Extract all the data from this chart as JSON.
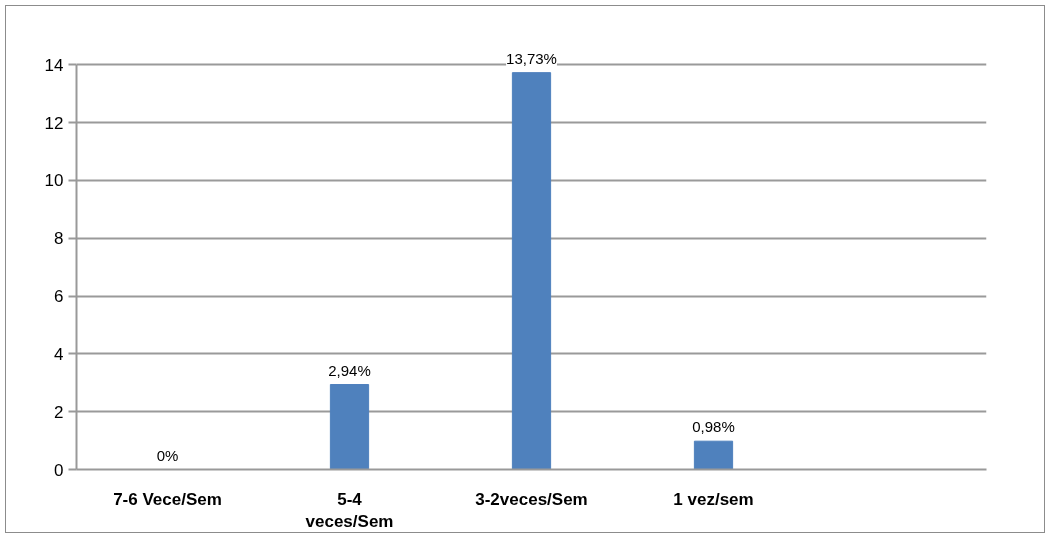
{
  "chart_data": {
    "type": "bar",
    "categories": [
      "7-6 Vece/Sem",
      "5-4 veces/Sem",
      "3-2veces/Sem",
      "1 vez/sem",
      null
    ],
    "values": [
      0,
      2.94,
      13.73,
      0.98,
      null
    ],
    "value_labels": [
      "0%",
      "2,94%",
      "13,73%",
      "0,98%",
      null
    ],
    "color": "#4f81bd",
    "ylim": [
      0,
      14
    ],
    "yticks": [
      0,
      2,
      4,
      6,
      8,
      10,
      12,
      14
    ],
    "grid": "y"
  }
}
